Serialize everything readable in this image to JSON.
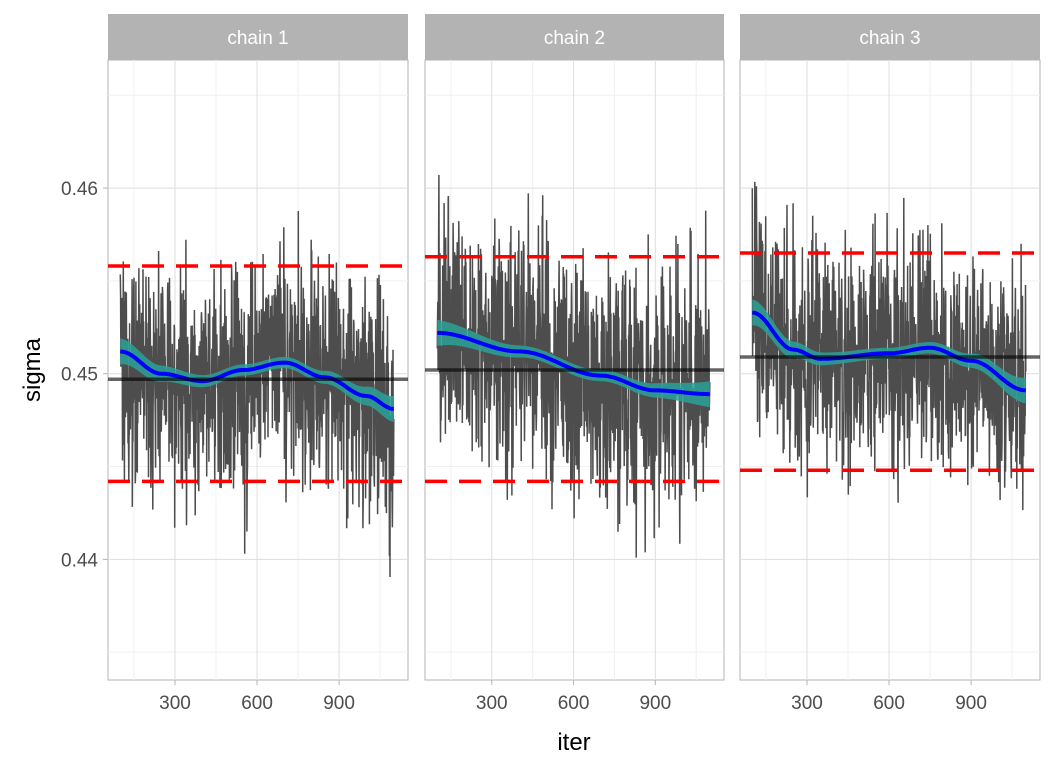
{
  "chart_data": {
    "type": "line",
    "xlabel": "iter",
    "ylabel": "sigma",
    "xlim": [
      55,
      1152
    ],
    "ylim": [
      0.4335,
      0.4669
    ],
    "xticks": [
      300,
      600,
      900
    ],
    "yticks": [
      0.44,
      0.45,
      0.46
    ],
    "ytick_labels": [
      "0.44",
      "0.45",
      "0.46"
    ],
    "xtick_labels": [
      "300",
      "600",
      "900"
    ],
    "grid": true,
    "colors": {
      "trace": "#4d4d4d",
      "smooth": "#0000ff",
      "band": "#2aa198",
      "ref": "#ff0000",
      "strip": "#b3b3b3"
    },
    "panels": [
      {
        "title": "chain 1",
        "iter_range": [
          100,
          1100
        ],
        "trace_mean": 0.4497,
        "trace_sd": 0.0042,
        "seed": 11,
        "quantiles": [
          0.4442,
          0.4497,
          0.4558
        ],
        "smooth": {
          "x": [
            100,
            250,
            400,
            550,
            700,
            850,
            1000,
            1100
          ],
          "y": [
            0.4512,
            0.45,
            0.4496,
            0.4502,
            0.4506,
            0.4498,
            0.4488,
            0.4481
          ]
        }
      },
      {
        "title": "chain 2",
        "iter_range": [
          100,
          1100
        ],
        "trace_mean": 0.4502,
        "trace_sd": 0.0043,
        "seed": 23,
        "quantiles": [
          0.4442,
          0.4502,
          0.4563
        ],
        "smooth": {
          "x": [
            100,
            400,
            700,
            900,
            1100
          ],
          "y": [
            0.4522,
            0.4512,
            0.4499,
            0.4491,
            0.4489
          ]
        }
      },
      {
        "title": "chain 3",
        "iter_range": [
          100,
          1100
        ],
        "trace_mean": 0.4509,
        "trace_sd": 0.004,
        "seed": 37,
        "quantiles": [
          0.4448,
          0.4509,
          0.4565
        ],
        "smooth": {
          "x": [
            100,
            250,
            350,
            600,
            750,
            900,
            1100
          ],
          "y": [
            0.4533,
            0.4513,
            0.4508,
            0.4511,
            0.4514,
            0.4507,
            0.4491
          ]
        }
      }
    ]
  }
}
